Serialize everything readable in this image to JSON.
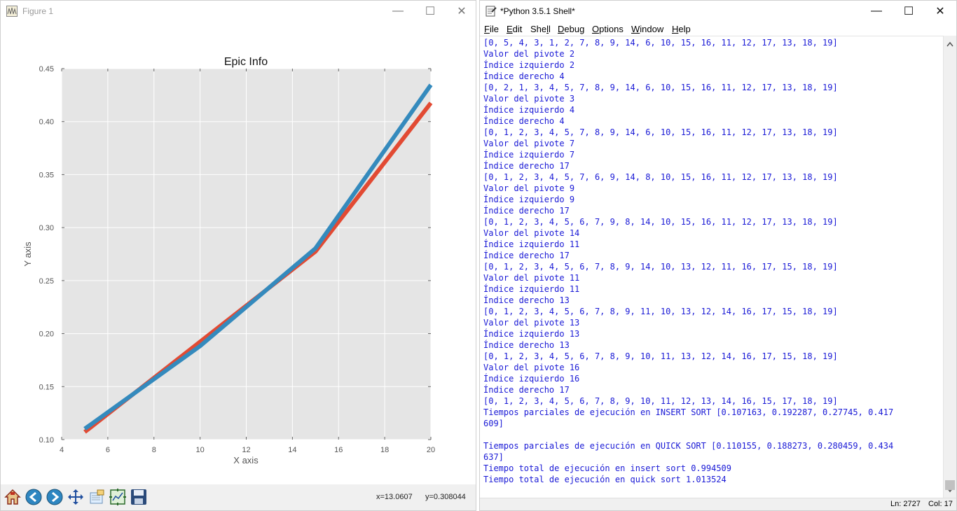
{
  "figure": {
    "window_title": "Figure 1",
    "coords": {
      "x": "x=13.0607",
      "y": "y=0.308044"
    },
    "toolbar": [
      {
        "name": "home-button",
        "icon": "home-icon"
      },
      {
        "name": "back-button",
        "icon": "back-arrow-icon"
      },
      {
        "name": "forward-button",
        "icon": "forward-arrow-icon"
      },
      {
        "name": "pan-button",
        "icon": "pan-arrows-icon"
      },
      {
        "name": "zoom-button",
        "icon": "zoom-rect-icon"
      },
      {
        "name": "subplots-button",
        "icon": "subplots-icon"
      },
      {
        "name": "save-button",
        "icon": "floppy-icon"
      }
    ]
  },
  "chart_data": {
    "type": "line",
    "title": "Epic Info",
    "xlabel": "X axis",
    "ylabel": "Y axis",
    "xlim": [
      4,
      20
    ],
    "ylim": [
      0.1,
      0.45
    ],
    "x_ticks": [
      "4",
      "6",
      "8",
      "10",
      "12",
      "14",
      "16",
      "18",
      "20"
    ],
    "y_ticks": [
      "0.10",
      "0.15",
      "0.20",
      "0.25",
      "0.30",
      "0.35",
      "0.40",
      "0.45"
    ],
    "grid": true,
    "x": [
      5,
      10,
      15,
      20
    ],
    "series": [
      {
        "values": [
          0.107163,
          0.192287,
          0.27745,
          0.417609
        ],
        "color": "#e24a33"
      },
      {
        "values": [
          0.110155,
          0.188273,
          0.280459,
          0.434637
        ],
        "color": "#348abd"
      }
    ]
  },
  "shell": {
    "window_title": "*Python 3.5.1 Shell*",
    "menu": [
      {
        "label": "File",
        "u": "F",
        "rest": "ile"
      },
      {
        "label": "Edit",
        "u": "E",
        "rest": "dit"
      },
      {
        "label": "Shell",
        "pre": "She",
        "u": "l",
        "rest": "l"
      },
      {
        "label": "Debug",
        "u": "D",
        "rest": "ebug"
      },
      {
        "label": "Options",
        "u": "O",
        "rest": "ptions"
      },
      {
        "label": "Window",
        "u": "W",
        "rest": "indow"
      },
      {
        "label": "Help",
        "u": "H",
        "rest": "elp"
      }
    ],
    "lines": [
      "[0, 5, 4, 3, 1, 2, 7, 8, 9, 14, 6, 10, 15, 16, 11, 12, 17, 13, 18, 19]",
      "Valor del pivote 2",
      "Índice izquierdo 2",
      "Índice derecho 4",
      "[0, 2, 1, 3, 4, 5, 7, 8, 9, 14, 6, 10, 15, 16, 11, 12, 17, 13, 18, 19]",
      "Valor del pivote 3",
      "Índice izquierdo 4",
      "Índice derecho 4",
      "[0, 1, 2, 3, 4, 5, 7, 8, 9, 14, 6, 10, 15, 16, 11, 12, 17, 13, 18, 19]",
      "Valor del pivote 7",
      "Índice izquierdo 7",
      "Índice derecho 17",
      "[0, 1, 2, 3, 4, 5, 7, 6, 9, 14, 8, 10, 15, 16, 11, 12, 17, 13, 18, 19]",
      "Valor del pivote 9",
      "Índice izquierdo 9",
      "Índice derecho 17",
      "[0, 1, 2, 3, 4, 5, 6, 7, 9, 8, 14, 10, 15, 16, 11, 12, 17, 13, 18, 19]",
      "Valor del pivote 14",
      "Índice izquierdo 11",
      "Índice derecho 17",
      "[0, 1, 2, 3, 4, 5, 6, 7, 8, 9, 14, 10, 13, 12, 11, 16, 17, 15, 18, 19]",
      "Valor del pivote 11",
      "Índice izquierdo 11",
      "Índice derecho 13",
      "[0, 1, 2, 3, 4, 5, 6, 7, 8, 9, 11, 10, 13, 12, 14, 16, 17, 15, 18, 19]",
      "Valor del pivote 13",
      "Índice izquierdo 13",
      "Índice derecho 13",
      "[0, 1, 2, 3, 4, 5, 6, 7, 8, 9, 10, 11, 13, 12, 14, 16, 17, 15, 18, 19]",
      "Valor del pivote 16",
      "Índice izquierdo 16",
      "Índice derecho 17",
      "[0, 1, 2, 3, 4, 5, 6, 7, 8, 9, 10, 11, 12, 13, 14, 16, 15, 17, 18, 19]",
      "Tiempos parciales de ejecución en INSERT SORT [0.107163, 0.192287, 0.27745, 0.417",
      "609]",
      "",
      "Tiempos parciales de ejecución en QUICK SORT [0.110155, 0.188273, 0.280459, 0.434",
      "637]",
      "Tiempo total de ejecución en insert sort 0.994509",
      "Tiempo total de ejecución en quick sort 1.013524"
    ],
    "status": {
      "ln": "Ln: 2727",
      "col": "Col: 17"
    }
  }
}
